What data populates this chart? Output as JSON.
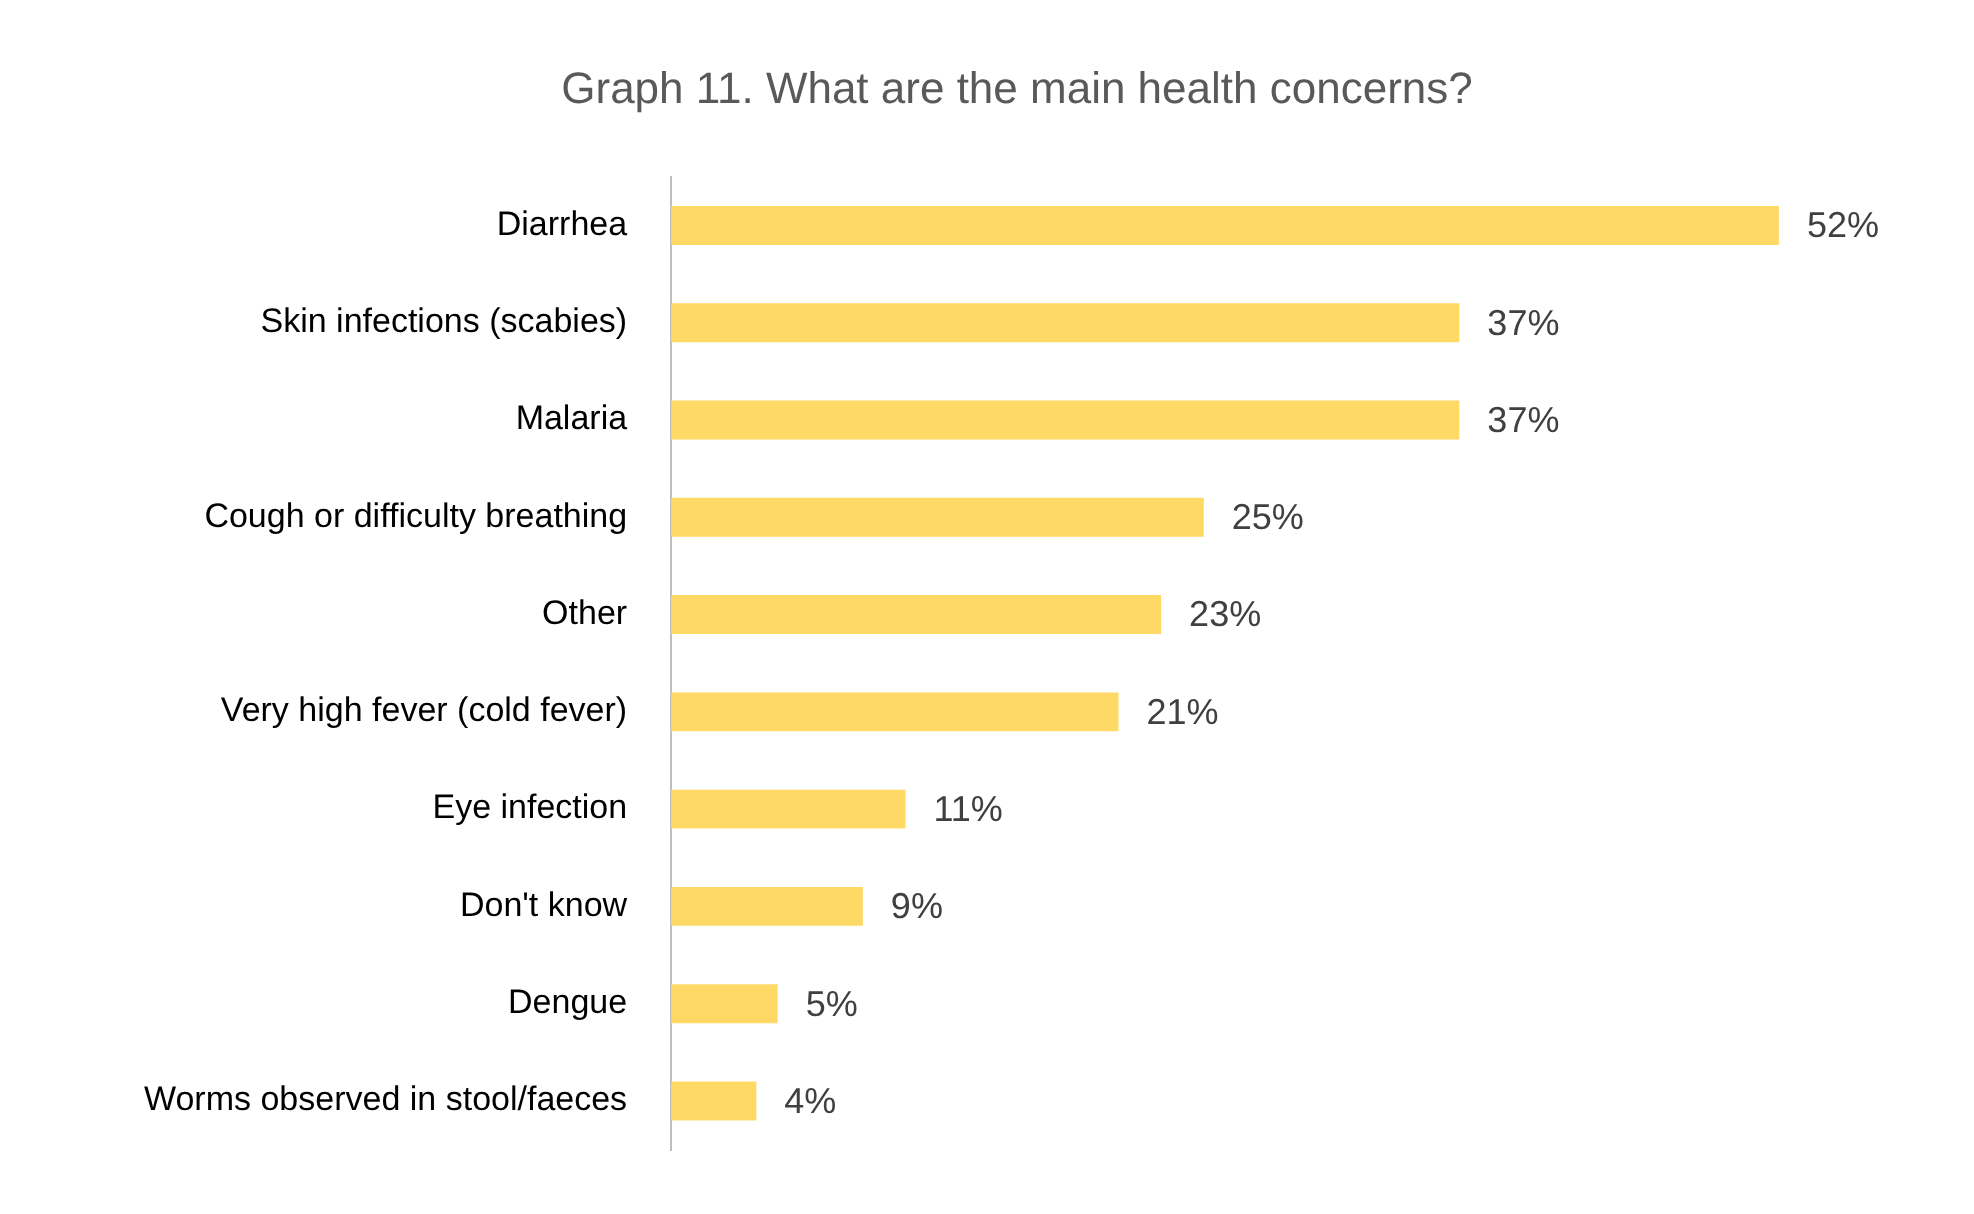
{
  "chart_data": {
    "type": "bar",
    "orientation": "horizontal",
    "title": "Graph 11. What are the main health concerns?",
    "categories": [
      "Diarrhea",
      "Skin infections (scabies)",
      "Malaria",
      "Cough or difficulty breathing",
      "Other",
      "Very high fever (cold fever)",
      "Eye infection",
      "Don't know",
      "Dengue",
      "Worms observed in stool/faeces"
    ],
    "values": [
      52,
      37,
      37,
      25,
      23,
      21,
      11,
      9,
      5,
      4
    ],
    "value_labels": [
      "52%",
      "37%",
      "37%",
      "25%",
      "23%",
      "21%",
      "11%",
      "9%",
      "5%",
      "4%"
    ],
    "color": "#ffd966",
    "tick_labels": "y"
  }
}
